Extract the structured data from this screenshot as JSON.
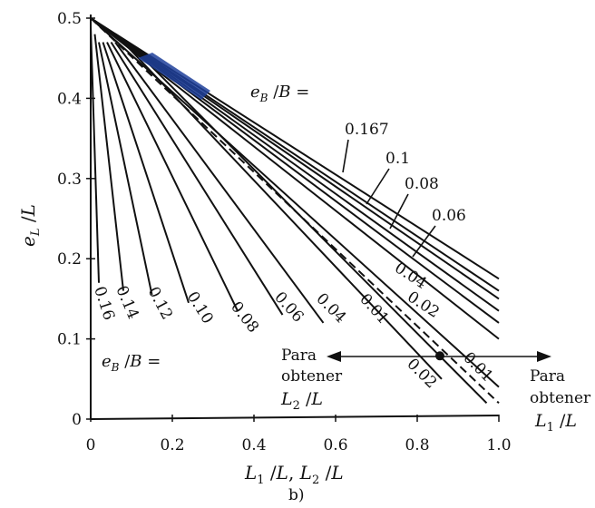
{
  "chart_data": {
    "type": "line",
    "title": "",
    "panel_label": "b)",
    "xlabel": "L₁/L, L₂/L",
    "ylabel": "e_L/L",
    "xlim": [
      0,
      1.0
    ],
    "ylim": [
      0,
      0.5
    ],
    "xticks": [
      "0",
      "0.2",
      "0.4",
      "0.6",
      "0.8",
      "1.0"
    ],
    "yticks": [
      "0",
      "0.1",
      "0.2",
      "0.3",
      "0.4",
      "0.5"
    ],
    "grid": false,
    "series_group_label": "e_B/B =",
    "curves_L1": [
      {
        "name": "0.167",
        "x": [
          0,
          1.0
        ],
        "y": [
          0.5,
          0.175
        ]
      },
      {
        "name": "0.1",
        "x": [
          0,
          1.0
        ],
        "y": [
          0.5,
          0.16
        ]
      },
      {
        "name": "0.08",
        "x": [
          0,
          1.0
        ],
        "y": [
          0.5,
          0.15
        ]
      },
      {
        "name": "0.06",
        "x": [
          0,
          1.0
        ],
        "y": [
          0.5,
          0.135
        ]
      },
      {
        "name": "0.04",
        "x": [
          0,
          1.0
        ],
        "y": [
          0.5,
          0.12
        ]
      },
      {
        "name": "0.02",
        "x": [
          0,
          1.0
        ],
        "y": [
          0.5,
          0.1
        ]
      },
      {
        "name": "0.01",
        "x": [
          0,
          1.0
        ],
        "y": [
          0.5,
          0.04
        ]
      }
    ],
    "dashed_divider": {
      "x": [
        0,
        1.0
      ],
      "y": [
        0.5,
        0.02
      ]
    },
    "curves_L2": [
      {
        "name": "0.16",
        "x": [
          0.0,
          0.02
        ],
        "y": [
          0.49,
          0.17
        ]
      },
      {
        "name": "0.14",
        "x": [
          0.01,
          0.08
        ],
        "y": [
          0.48,
          0.16
        ]
      },
      {
        "name": "0.12",
        "x": [
          0.02,
          0.15
        ],
        "y": [
          0.47,
          0.155
        ]
      },
      {
        "name": "0.10",
        "x": [
          0.03,
          0.24
        ],
        "y": [
          0.47,
          0.145
        ]
      },
      {
        "name": "0.08",
        "x": [
          0.04,
          0.36
        ],
        "y": [
          0.47,
          0.135
        ]
      },
      {
        "name": "0.06",
        "x": [
          0.05,
          0.47
        ],
        "y": [
          0.47,
          0.13
        ]
      },
      {
        "name": "0.04",
        "x": [
          0.06,
          0.57
        ],
        "y": [
          0.47,
          0.12
        ]
      },
      {
        "name": "0.02",
        "x": [
          0.08,
          0.86
        ],
        "y": [
          0.47,
          0.05
        ]
      },
      {
        "name": "0.01",
        "x": [
          0.09,
          0.97
        ],
        "y": [
          0.47,
          0.02
        ]
      }
    ],
    "example_point": {
      "x": 0.86,
      "y": 0.08
    },
    "annotations": {
      "left_arrow": [
        "Para",
        "obtener",
        "L₂/L"
      ],
      "right_arrow": [
        "Para",
        "obtener",
        "L₁/L"
      ]
    }
  }
}
